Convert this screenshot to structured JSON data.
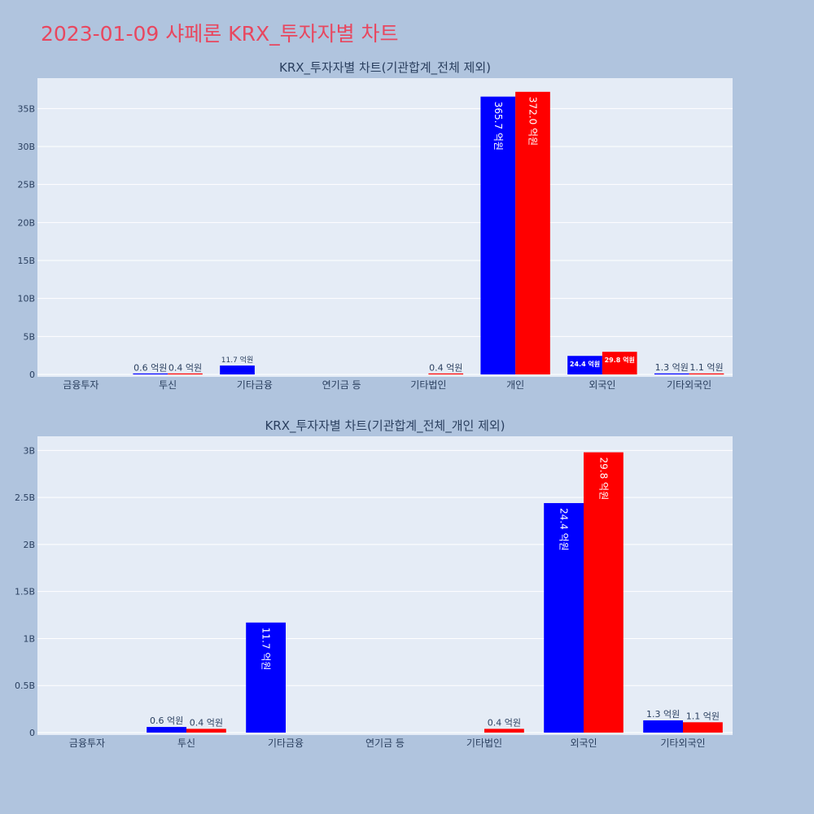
{
  "page": {
    "title": "2023-01-09 샤페론 KRX_투자자별 차트"
  },
  "colors": {
    "buy": "#0000ff",
    "sell": "#ff0000",
    "title": "#e8475f",
    "background": "#b0c4de",
    "plot_bg": "#e5ecf6",
    "grid": "#ffffff",
    "text": "#2a3f5f"
  },
  "chart_data": [
    {
      "type": "bar",
      "title": "KRX_투자자별 차트(기관합계_전체 제외)",
      "categories": [
        "금융투자",
        "투신",
        "기타금융",
        "연기금 등",
        "기타법인",
        "개인",
        "외국인",
        "기타외국인"
      ],
      "series": [
        {
          "values": [
            0,
            0.06,
            1.17,
            0,
            0,
            36.57,
            2.44,
            0.13
          ],
          "labels": [
            "",
            "0.6 억원",
            "11.7 억원",
            "",
            "",
            "365.7 억원",
            "24.4 억원",
            "1.3 억원"
          ]
        },
        {
          "values": [
            0,
            0.04,
            0,
            0,
            0.04,
            37.2,
            2.98,
            0.11
          ],
          "labels": [
            "",
            "0.4 억원",
            "",
            "",
            "0.4 억원",
            "372.0 억원",
            "29.8 억원",
            "1.1 억원"
          ]
        }
      ],
      "ylim": [
        0,
        39
      ],
      "yticks": [
        0,
        5,
        10,
        15,
        20,
        25,
        30,
        35
      ],
      "ytick_labels": [
        "0",
        "5B",
        "10B",
        "15B",
        "20B",
        "25B",
        "30B",
        "35B"
      ],
      "grid": true
    },
    {
      "type": "bar",
      "title": "KRX_투자자별 차트(기관합계_전체_개인 제외)",
      "categories": [
        "금융투자",
        "투신",
        "기타금융",
        "연기금 등",
        "기타법인",
        "외국인",
        "기타외국인"
      ],
      "series": [
        {
          "values": [
            0,
            0.06,
            1.17,
            0,
            0,
            2.44,
            0.13
          ],
          "labels": [
            "",
            "0.6 억원",
            "11.7 억원",
            "",
            "",
            "24.4 억원",
            "1.3 억원"
          ]
        },
        {
          "values": [
            0,
            0.04,
            0,
            0,
            0.04,
            2.98,
            0.11
          ],
          "labels": [
            "",
            "0.4 억원",
            "",
            "",
            "0.4 억원",
            "29.8 억원",
            "1.1 억원"
          ]
        }
      ],
      "ylim": [
        0,
        3.15
      ],
      "yticks": [
        0,
        0.5,
        1,
        1.5,
        2,
        2.5,
        3
      ],
      "ytick_labels": [
        "0",
        "0.5B",
        "1B",
        "1.5B",
        "2B",
        "2.5B",
        "3B"
      ],
      "grid": true
    }
  ]
}
